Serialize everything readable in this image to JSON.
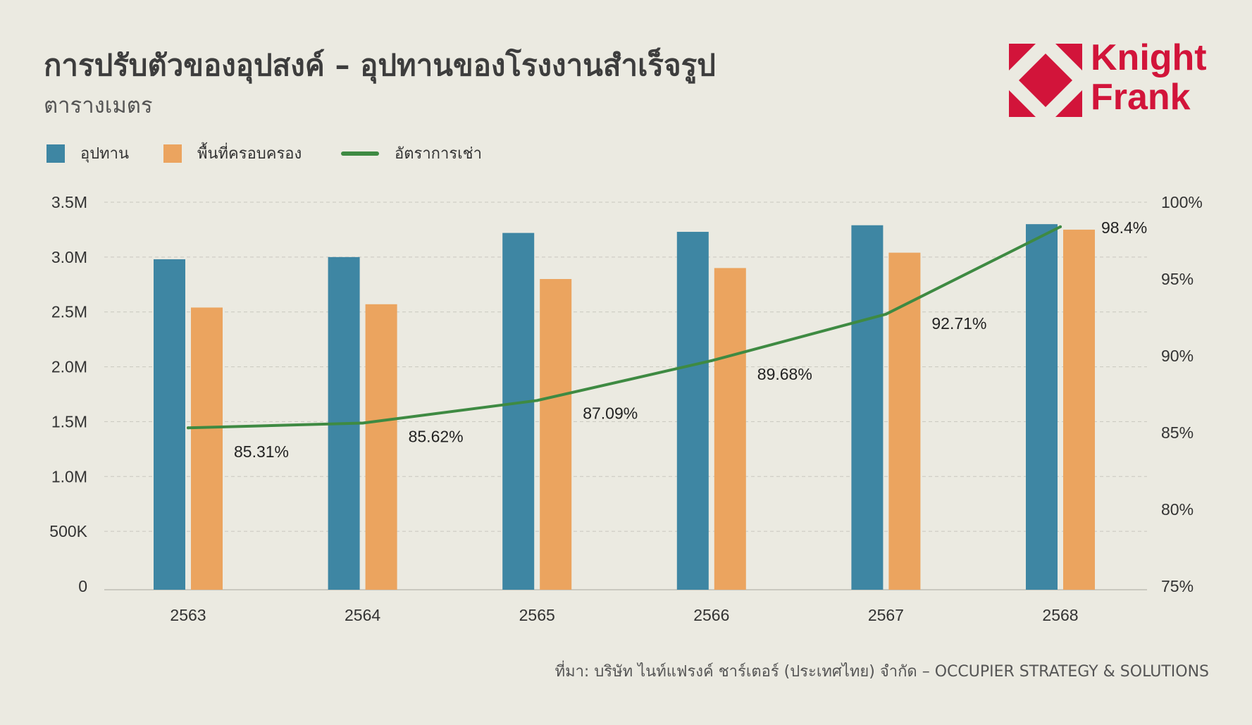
{
  "header": {
    "title": "การปรับตัวของอุปสงค์ – อุปทานของโรงงานสำเร็จรูป",
    "subtitle": "ตารางเมตร"
  },
  "logo": {
    "line1": "Knight",
    "line2": "Frank",
    "color": "#D2143A"
  },
  "legend": {
    "supply": "อุปทาน",
    "occupied": "พื้นที่ครอบครอง",
    "occupancy": "อัตราการเช่า"
  },
  "colors": {
    "supply": "#3E86A3",
    "occupied": "#EBA45F",
    "occupancy": "#3E8A42",
    "background": "#EBEAE1"
  },
  "chart_data": {
    "type": "bar",
    "categories": [
      "2563",
      "2564",
      "2565",
      "2566",
      "2567",
      "2568"
    ],
    "series": [
      {
        "name": "อุปทาน",
        "type": "bar",
        "axis": "left",
        "values": [
          2980000,
          3000000,
          3220000,
          3230000,
          3290000,
          3300000
        ]
      },
      {
        "name": "พื้นที่ครอบครอง",
        "type": "bar",
        "axis": "left",
        "values": [
          2540000,
          2570000,
          2800000,
          2900000,
          3040000,
          3250000
        ]
      },
      {
        "name": "อัตราการเช่า",
        "type": "line",
        "axis": "right",
        "values": [
          85.31,
          85.62,
          87.09,
          89.68,
          92.71,
          98.4
        ]
      }
    ],
    "data_labels": [
      "85.31%",
      "85.62%",
      "87.09%",
      "89.68%",
      "92.71%",
      "98.4%"
    ],
    "y_left": {
      "lim": [
        0,
        3500000
      ],
      "ticks": [
        0,
        500000,
        1000000,
        1500000,
        2000000,
        2500000,
        3000000,
        3500000
      ],
      "tick_labels": [
        "0",
        "500K",
        "1.0M",
        "1.5M",
        "2.0M",
        "2.5M",
        "3.0M",
        "3.5M"
      ]
    },
    "y_right": {
      "lim": [
        75,
        100
      ],
      "ticks": [
        75,
        80,
        85,
        90,
        95,
        100
      ],
      "tick_labels": [
        "75%",
        "80%",
        "85%",
        "90%",
        "95%",
        "100%"
      ]
    },
    "grid": true,
    "legend_position": "top-left"
  },
  "source": "ที่มา: บริษัท ไนท์แฟรงค์ ชาร์เตอร์ (ประเทศไทย) จำกัด – OCCUPIER STRATEGY & SOLUTIONS"
}
